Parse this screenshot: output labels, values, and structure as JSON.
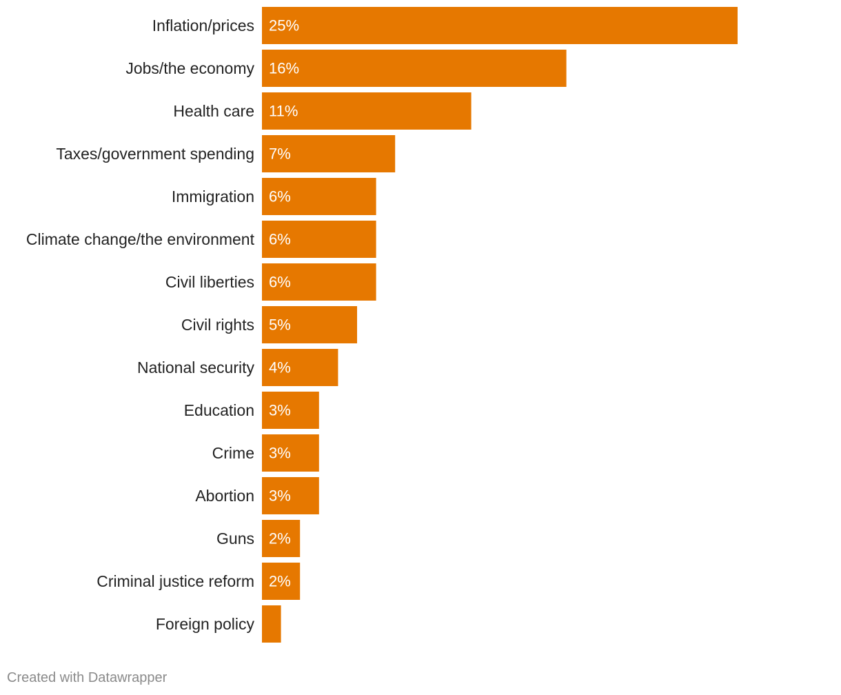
{
  "chart_data": {
    "type": "bar",
    "orientation": "horizontal",
    "categories": [
      "Inflation/prices",
      "Jobs/the economy",
      "Health care",
      "Taxes/government spending",
      "Immigration",
      "Climate change/the environment",
      "Civil liberties",
      "Civil rights",
      "National security",
      "Education",
      "Crime",
      "Abortion",
      "Guns",
      "Criminal justice reform",
      "Foreign policy"
    ],
    "values": [
      25,
      16,
      11,
      7,
      6,
      6,
      6,
      5,
      4,
      3,
      3,
      3,
      2,
      2,
      1
    ],
    "value_labels": [
      "25%",
      "16%",
      "11%",
      "7%",
      "6%",
      "6%",
      "6%",
      "5%",
      "4%",
      "3%",
      "3%",
      "3%",
      "2%",
      "2%",
      ""
    ],
    "title": "",
    "xlabel": "",
    "ylabel": "",
    "xlim": [
      0,
      25
    ],
    "grid": false,
    "legend": "none",
    "bar_color": "#e67800"
  },
  "credit": "Created with Datawrapper"
}
